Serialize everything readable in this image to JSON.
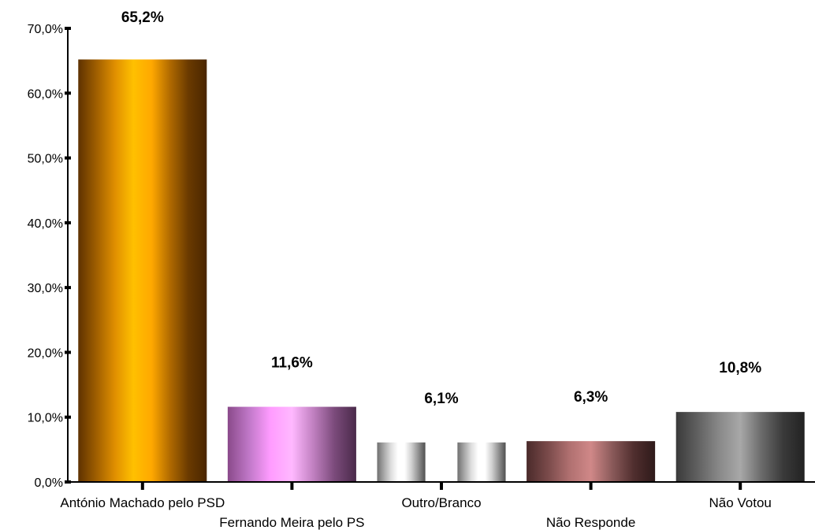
{
  "chart_data": {
    "type": "bar",
    "categories": [
      "António Machado pelo PSD",
      "Fernando Meira pelo PS",
      "Outro/Branco",
      "Não Responde",
      "Não Votou"
    ],
    "values": [
      65.2,
      11.6,
      6.1,
      6.3,
      10.8
    ],
    "data_labels": [
      "65,2%",
      "11,6%",
      "6,1%",
      "6,3%",
      "10,8%"
    ],
    "y_ticks": [
      "0,0%",
      "10,0%",
      "20,0%",
      "30,0%",
      "40,0%",
      "50,0%",
      "60,0%",
      "70,0%"
    ],
    "ylim": [
      0,
      70
    ],
    "grid": false,
    "legend": "none",
    "bar_gradients": [
      [
        "#5e3200",
        "#a05f00",
        "#e08f00",
        "#ffc000",
        "#ffa800",
        "#b06a00",
        "#6a3a00",
        "#4a2600"
      ],
      [
        "#8a4a8a",
        "#c078c8",
        "#ff9cff",
        "#ffb8ff",
        "#c080c0",
        "#7a4a7a",
        "#4a2a4a"
      ],
      [
        "#707070",
        "#a8a8a8",
        "#dddddd",
        "#ffffff",
        "#ffffff",
        "#d0d0d0",
        "#909090",
        "#505050"
      ],
      [
        "#4a2a2a",
        "#7a4a4a",
        "#b07070",
        "#d08888",
        "#8a5a5a",
        "#502e2e",
        "#2e1a1a"
      ],
      [
        "#3a3a3a",
        "#606060",
        "#888888",
        "#a8a8a8",
        "#6a6a6a",
        "#3a3a3a",
        "#222222"
      ]
    ]
  }
}
